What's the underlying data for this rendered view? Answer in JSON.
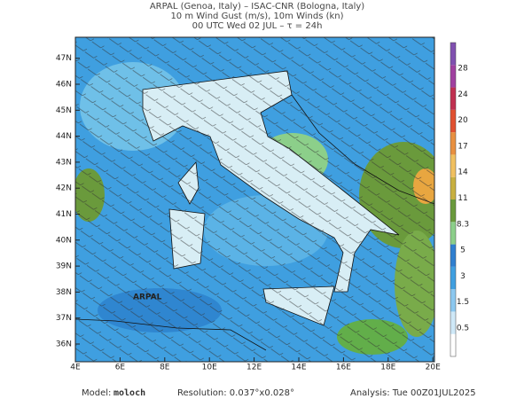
{
  "header": {
    "lines": [
      "ARPAL (Genoa, Italy)  –  ISAC-CNR (Bologna, Italy)",
      "10 m Wind Gust (m/s), 10m Winds (kn)",
      "00 UTC Wed 02 JUL  –  τ = 24h"
    ]
  },
  "map": {
    "lon_labels": [
      "4E",
      "6E",
      "8E",
      "10E",
      "12E",
      "14E",
      "16E",
      "18E",
      "20E"
    ],
    "lat_labels": [
      "36N",
      "37N",
      "38N",
      "39N",
      "40N",
      "41N",
      "42N",
      "43N",
      "44N",
      "45N",
      "46N",
      "47N"
    ],
    "watermark": "ARPAL"
  },
  "colorbar": {
    "labels": [
      "0.5",
      "1.5",
      "3",
      "5",
      "8.3",
      "11",
      "14",
      "17",
      "20",
      "24",
      "28"
    ]
  },
  "footer": {
    "model_label": "Model:",
    "model": "moloch",
    "resolution": "Resolution: 0.037°x0.028°",
    "analysis": "Analysis: Tue 00Z01JUL2025"
  }
}
